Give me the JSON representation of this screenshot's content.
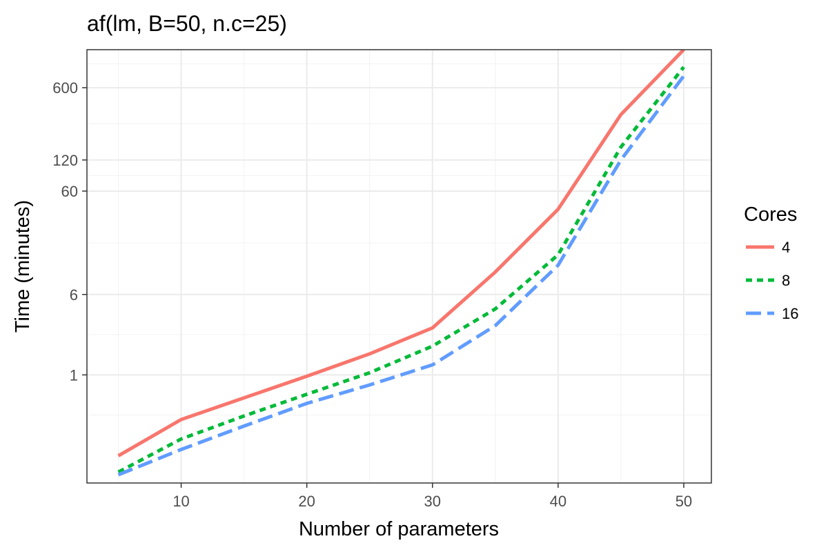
{
  "chart_data": {
    "type": "line",
    "title": "af(lm, B=50, n.c=25)",
    "xlabel": "Number of parameters",
    "ylabel": "Time (minutes)",
    "x": [
      5,
      10,
      15,
      20,
      25,
      30,
      35,
      40,
      45,
      50
    ],
    "x_ticks": [
      10,
      20,
      30,
      40,
      50
    ],
    "x_tick_labels": [
      "10",
      "20",
      "30",
      "40",
      "50"
    ],
    "y_ticks": [
      1,
      6,
      60,
      120,
      600
    ],
    "y_tick_labels": [
      "1",
      "6",
      "60",
      "120",
      "600"
    ],
    "y_scale": "log",
    "xlim": [
      2.5,
      52.2
    ],
    "ylim": [
      0.09,
      1400
    ],
    "grid": true,
    "legend": {
      "title": "Cores",
      "position": "right"
    },
    "series": [
      {
        "name": "4",
        "color": "#F8766D",
        "dash": "solid",
        "values": [
          0.165,
          0.37,
          0.6,
          0.97,
          1.6,
          2.85,
          9.9,
          40,
          330,
          1400
        ]
      },
      {
        "name": "8",
        "color": "#00BA38",
        "dash": "dotted",
        "values": [
          0.115,
          0.24,
          0.4,
          0.65,
          1.05,
          1.9,
          4.35,
          14.5,
          160,
          950
        ]
      },
      {
        "name": "16",
        "color": "#619CFF",
        "dash": "dashed",
        "values": [
          0.108,
          0.19,
          0.32,
          0.53,
          0.8,
          1.25,
          3.0,
          11.5,
          120,
          780
        ]
      }
    ]
  }
}
